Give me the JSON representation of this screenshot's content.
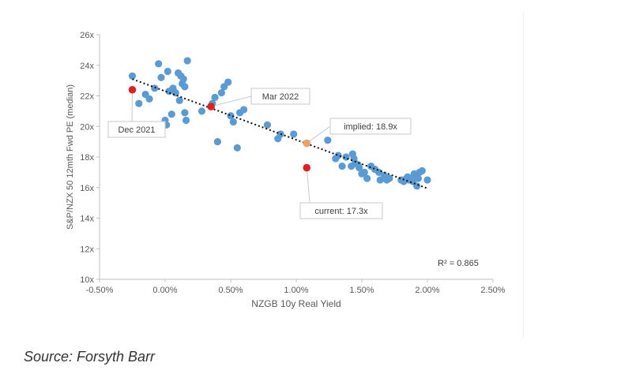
{
  "source_text": "Source: Forsyth Barr",
  "colors": {
    "point": "#5b9bd5",
    "highlight": "#e02020",
    "implied": "#f0a060",
    "trend": "#111111",
    "axis": "#bfbfbf",
    "text": "#595959"
  },
  "chart_data": {
    "type": "scatter",
    "xlabel": "NZGB 10y Real Yield",
    "ylabel": "S&P/NZX 50 12mth Fwd PE (median)",
    "xlim": [
      -0.5,
      2.5
    ],
    "ylim": [
      10,
      26
    ],
    "x_ticks": [
      {
        "v": -0.5,
        "label": "-0.50%"
      },
      {
        "v": 0.0,
        "label": "0.00%"
      },
      {
        "v": 0.5,
        "label": "0.50%"
      },
      {
        "v": 1.0,
        "label": "1.00%"
      },
      {
        "v": 1.5,
        "label": "1.50%"
      },
      {
        "v": 2.0,
        "label": "2.00%"
      },
      {
        "v": 2.5,
        "label": "2.50%"
      }
    ],
    "y_ticks": [
      {
        "v": 10,
        "label": "10x"
      },
      {
        "v": 12,
        "label": "12x"
      },
      {
        "v": 14,
        "label": "14x"
      },
      {
        "v": 16,
        "label": "16x"
      },
      {
        "v": 18,
        "label": "18x"
      },
      {
        "v": 20,
        "label": "20x"
      },
      {
        "v": 22,
        "label": "22x"
      },
      {
        "v": 24,
        "label": "24x"
      },
      {
        "v": 26,
        "label": "26x"
      }
    ],
    "points": [
      [
        -0.25,
        23.3
      ],
      [
        -0.2,
        21.5
      ],
      [
        -0.15,
        22.1
      ],
      [
        -0.12,
        21.8
      ],
      [
        -0.08,
        22.5
      ],
      [
        -0.05,
        24.1
      ],
      [
        -0.03,
        23.2
      ],
      [
        0.0,
        20.4
      ],
      [
        0.01,
        20.1
      ],
      [
        0.02,
        23.6
      ],
      [
        0.03,
        22.3
      ],
      [
        0.05,
        20.8
      ],
      [
        0.06,
        22.5
      ],
      [
        0.08,
        22.2
      ],
      [
        0.1,
        23.5
      ],
      [
        0.11,
        21.7
      ],
      [
        0.12,
        23.3
      ],
      [
        0.13,
        22.8
      ],
      [
        0.14,
        23.1
      ],
      [
        0.15,
        22.6
      ],
      [
        0.15,
        20.9
      ],
      [
        0.16,
        20.4
      ],
      [
        0.17,
        24.3
      ],
      [
        0.28,
        21.0
      ],
      [
        0.36,
        21.5
      ],
      [
        0.38,
        21.9
      ],
      [
        0.4,
        19.0
      ],
      [
        0.43,
        22.2
      ],
      [
        0.45,
        22.6
      ],
      [
        0.48,
        22.9
      ],
      [
        0.5,
        20.7
      ],
      [
        0.52,
        20.3
      ],
      [
        0.55,
        18.6
      ],
      [
        0.57,
        20.9
      ],
      [
        0.6,
        21.1
      ],
      [
        0.78,
        20.1
      ],
      [
        0.86,
        19.2
      ],
      [
        0.88,
        19.5
      ],
      [
        0.98,
        19.5
      ],
      [
        1.24,
        19.1
      ],
      [
        1.3,
        17.9
      ],
      [
        1.32,
        18.1
      ],
      [
        1.35,
        17.4
      ],
      [
        1.38,
        18.0
      ],
      [
        1.42,
        17.4
      ],
      [
        1.43,
        18.2
      ],
      [
        1.44,
        17.9
      ],
      [
        1.45,
        17.6
      ],
      [
        1.47,
        17.5
      ],
      [
        1.48,
        17.3
      ],
      [
        1.5,
        16.9
      ],
      [
        1.52,
        17.0
      ],
      [
        1.54,
        16.6
      ],
      [
        1.57,
        17.4
      ],
      [
        1.6,
        17.2
      ],
      [
        1.63,
        17.0
      ],
      [
        1.64,
        16.5
      ],
      [
        1.67,
        16.8
      ],
      [
        1.69,
        16.5
      ],
      [
        1.71,
        16.6
      ],
      [
        1.8,
        16.5
      ],
      [
        1.82,
        16.4
      ],
      [
        1.84,
        16.6
      ],
      [
        1.85,
        16.7
      ],
      [
        1.86,
        16.5
      ],
      [
        1.88,
        16.6
      ],
      [
        1.89,
        16.4
      ],
      [
        1.9,
        16.9
      ],
      [
        1.91,
        16.7
      ],
      [
        1.92,
        16.1
      ],
      [
        1.93,
        16.6
      ],
      [
        1.94,
        17.0
      ],
      [
        1.96,
        17.1
      ],
      [
        2.0,
        16.5
      ]
    ],
    "highlights": [
      {
        "name": "Dec 2021",
        "x": -0.25,
        "y": 22.4
      },
      {
        "name": "Mar 2022",
        "x": 0.35,
        "y": 21.3
      },
      {
        "name": "current: 17.3x",
        "x": 1.08,
        "y": 17.3
      }
    ],
    "implied": {
      "name": "implied: 18.9x",
      "x": 1.08,
      "y": 18.9
    },
    "trendline": {
      "x0": -0.25,
      "y0": 23.1,
      "x1": 2.0,
      "y1": 15.95
    },
    "r_squared_label": "R² = 0.865"
  }
}
